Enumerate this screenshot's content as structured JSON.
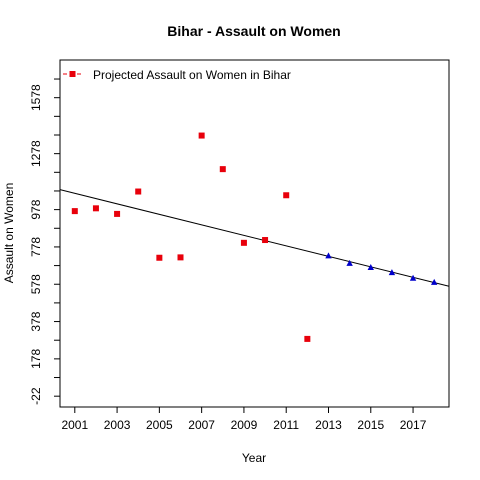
{
  "chart_data": {
    "type": "scatter",
    "title": "Bihar  -  Assault on Women",
    "xlabel": "Year",
    "ylabel": "Assault on Women",
    "x_range": [
      2000.3,
      2018.7
    ],
    "y_range": [
      -80,
      1780
    ],
    "x_ticks": [
      2001,
      2003,
      2005,
      2007,
      2009,
      2011,
      2013,
      2015,
      2017
    ],
    "y_ticks": [
      -22,
      178,
      378,
      578,
      778,
      978,
      1278,
      1578
    ],
    "y_minor_ticks": [
      78,
      278,
      478,
      678,
      878,
      1078,
      1178,
      1378,
      1478,
      1678
    ],
    "legend": {
      "label": "Projected  Assault on Women  in  Bihar",
      "position": "top-left"
    },
    "series": [
      {
        "marker": "square",
        "color": "#e8000b",
        "points": [
          [
            2001,
            970
          ],
          [
            2002,
            985
          ],
          [
            2003,
            955
          ],
          [
            2004,
            1075
          ],
          [
            2005,
            720
          ],
          [
            2006,
            722
          ],
          [
            2007,
            1375
          ],
          [
            2008,
            1195
          ],
          [
            2009,
            800
          ],
          [
            2010,
            815
          ],
          [
            2011,
            1055
          ],
          [
            2012,
            285
          ]
        ]
      },
      {
        "marker": "triangle",
        "color": "#0000cc",
        "points": [
          [
            2013,
            730
          ],
          [
            2014,
            690
          ],
          [
            2015,
            668
          ],
          [
            2016,
            640
          ],
          [
            2017,
            610
          ],
          [
            2018,
            588
          ]
        ]
      }
    ],
    "trend_line": {
      "color": "#000000",
      "start": [
        2000.3,
        1085
      ],
      "end": [
        2018.7,
        567
      ]
    }
  }
}
